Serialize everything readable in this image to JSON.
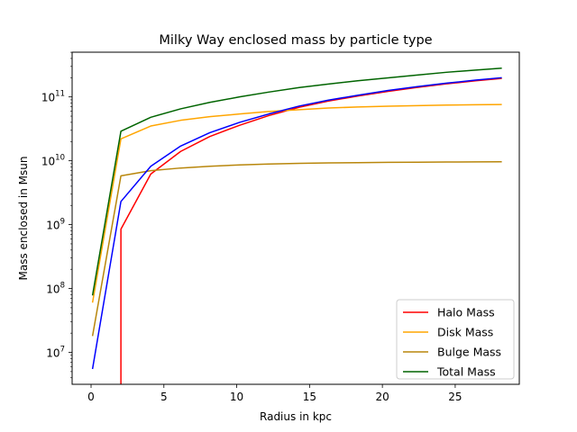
{
  "chart_data": {
    "type": "line",
    "title": "Milky Way enclosed mass by particle type",
    "xlabel": "Radius in kpc",
    "ylabel": "Mass enclosed in Msun",
    "yscale": "log",
    "xlim": [
      -1.3,
      29.4
    ],
    "ylim_log10": [
      6.5,
      11.7
    ],
    "xticks": [
      0,
      5,
      10,
      15,
      20,
      25
    ],
    "yticks": [
      {
        "exp": 7,
        "base": "10",
        "sup": "7"
      },
      {
        "exp": 8,
        "base": "10",
        "sup": "8"
      },
      {
        "exp": 9,
        "base": "10",
        "sup": "9"
      },
      {
        "exp": 10,
        "base": "10",
        "sup": "10"
      },
      {
        "exp": 11,
        "base": "10",
        "sup": "11"
      }
    ],
    "grid": false,
    "legend_position": "lower-right",
    "series": [
      {
        "name": "Halo Mass",
        "color": "#ff0000",
        "points": [
          [
            2.05,
            1
          ],
          [
            2.05,
            850000000.0
          ],
          [
            4.1,
            6200000000.0
          ],
          [
            6.15,
            14000000000.0
          ],
          [
            8.15,
            24000000000.0
          ],
          [
            10.2,
            36000000000.0
          ],
          [
            12.2,
            51000000000.0
          ],
          [
            14.3,
            69000000000.0
          ],
          [
            16.3,
            86000000000.0
          ],
          [
            18.3,
            103000000000.0
          ],
          [
            20.4,
            122000000000.0
          ],
          [
            22.4,
            141000000000.0
          ],
          [
            24.4,
            160000000000.0
          ],
          [
            26.4,
            179000000000.0
          ],
          [
            28.2,
            195000000000.0
          ]
        ]
      },
      {
        "name": "Disk Mass",
        "color": "#ffa500",
        "points": [
          [
            0.1,
            60000000.0
          ],
          [
            2.05,
            22000000000.0
          ],
          [
            4.1,
            35000000000.0
          ],
          [
            6.15,
            43000000000.0
          ],
          [
            8.15,
            49000000000.0
          ],
          [
            10.2,
            54000000000.0
          ],
          [
            12.2,
            59000000000.0
          ],
          [
            14.3,
            63000000000.0
          ],
          [
            16.3,
            67000000000.0
          ],
          [
            18.3,
            69500000000.0
          ],
          [
            20.4,
            71500000000.0
          ],
          [
            22.4,
            73000000000.0
          ],
          [
            24.4,
            74500000000.0
          ],
          [
            26.4,
            75500000000.0
          ],
          [
            28.2,
            76000000000.0
          ]
        ]
      },
      {
        "name": "Bulge Mass",
        "color": "#b8860b",
        "points": [
          [
            0.1,
            18000000.0
          ],
          [
            2.05,
            5800000000.0
          ],
          [
            4.1,
            7000000000.0
          ],
          [
            6.15,
            7700000000.0
          ],
          [
            8.15,
            8200000000.0
          ],
          [
            10.2,
            8600000000.0
          ],
          [
            12.2,
            8900000000.0
          ],
          [
            14.3,
            9100000000.0
          ],
          [
            16.3,
            9250000000.0
          ],
          [
            18.3,
            9350000000.0
          ],
          [
            20.4,
            9450000000.0
          ],
          [
            22.4,
            9500000000.0
          ],
          [
            24.4,
            9550000000.0
          ],
          [
            26.4,
            9600000000.0
          ],
          [
            28.2,
            9650000000.0
          ]
        ]
      },
      {
        "name": "Total Mass",
        "color": "#006400",
        "points": [
          [
            0.1,
            78000000.0
          ],
          [
            2.05,
            29000000000.0
          ],
          [
            4.1,
            48000000000.0
          ],
          [
            6.15,
            65000000000.0
          ],
          [
            8.15,
            82000000000.0
          ],
          [
            10.2,
            100000000000.0
          ],
          [
            12.2,
            119000000000.0
          ],
          [
            14.3,
            140000000000.0
          ],
          [
            16.3,
            159000000000.0
          ],
          [
            18.3,
            179000000000.0
          ],
          [
            20.4,
            199000000000.0
          ],
          [
            22.4,
            220000000000.0
          ],
          [
            24.4,
            243000000000.0
          ],
          [
            26.4,
            263000000000.0
          ],
          [
            28.2,
            282000000000.0
          ]
        ]
      },
      {
        "name": "",
        "color": "#0000ff",
        "points": [
          [
            0.1,
            5500000.0
          ],
          [
            2.05,
            2300000000.0
          ],
          [
            4.1,
            8200000000.0
          ],
          [
            6.15,
            17000000000.0
          ],
          [
            8.15,
            27500000000.0
          ],
          [
            10.2,
            40000000000.0
          ],
          [
            12.2,
            54000000000.0
          ],
          [
            14.3,
            72000000000.0
          ],
          [
            16.3,
            89000000000.0
          ],
          [
            18.3,
            106000000000.0
          ],
          [
            20.4,
            126000000000.0
          ],
          [
            22.4,
            145000000000.0
          ],
          [
            24.4,
            164000000000.0
          ],
          [
            26.4,
            183000000000.0
          ],
          [
            28.2,
            200000000000.0
          ]
        ]
      }
    ],
    "legend": [
      "Halo Mass",
      "Disk Mass",
      "Bulge Mass",
      "Total Mass"
    ]
  }
}
